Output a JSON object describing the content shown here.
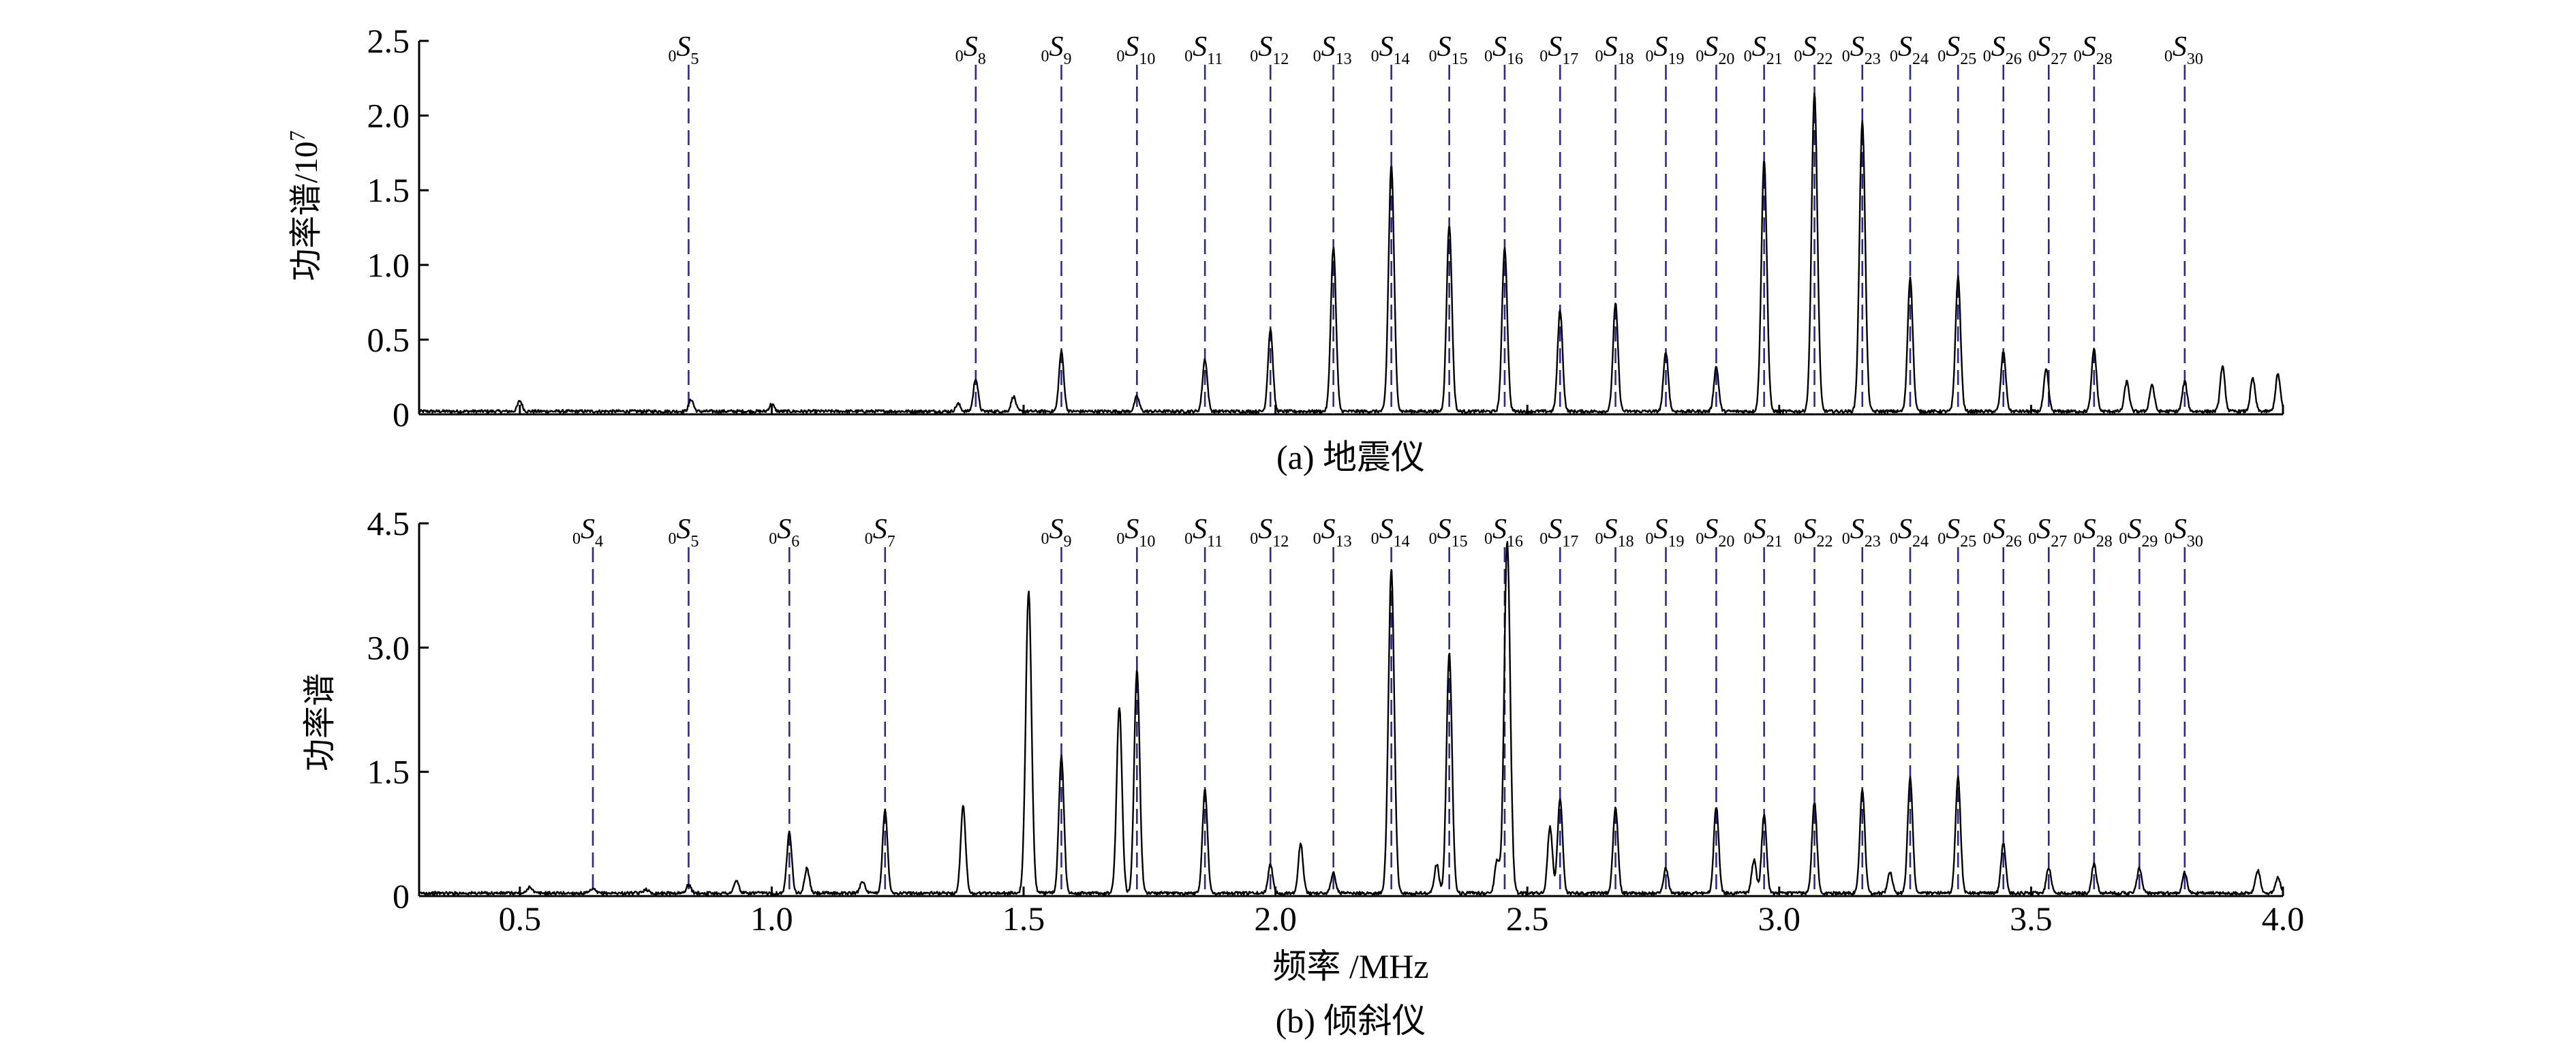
{
  "chart_data": [
    {
      "type": "line",
      "panel_caption": "(a) 地震仪",
      "ylabel": "功率谱/10^7",
      "ylabel_main": "功率谱/10",
      "ylabel_exp": "7",
      "xlim": [
        0.3,
        4.0
      ],
      "ylim": [
        0,
        2.5
      ],
      "yticks": [
        0,
        0.5,
        1.0,
        1.5,
        2.0,
        2.5
      ],
      "ytick_labels": [
        "0",
        "0.5",
        "1.0",
        "1.5",
        "2.0",
        "2.5"
      ],
      "markers": [
        {
          "label": "0",
          "sub": "5",
          "x": 0.835
        },
        {
          "label": "0",
          "sub": "8",
          "x": 1.405
        },
        {
          "label": "0",
          "sub": "9",
          "x": 1.575
        },
        {
          "label": "0",
          "sub": "10",
          "x": 1.725
        },
        {
          "label": "0",
          "sub": "11",
          "x": 1.86
        },
        {
          "label": "0",
          "sub": "12",
          "x": 1.99
        },
        {
          "label": "0",
          "sub": "13",
          "x": 2.115
        },
        {
          "label": "0",
          "sub": "14",
          "x": 2.23
        },
        {
          "label": "0",
          "sub": "15",
          "x": 2.345
        },
        {
          "label": "0",
          "sub": "16",
          "x": 2.455
        },
        {
          "label": "0",
          "sub": "17",
          "x": 2.565
        },
        {
          "label": "0",
          "sub": "18",
          "x": 2.675
        },
        {
          "label": "0",
          "sub": "19",
          "x": 2.775
        },
        {
          "label": "0",
          "sub": "20",
          "x": 2.875
        },
        {
          "label": "0",
          "sub": "21",
          "x": 2.97
        },
        {
          "label": "0",
          "sub": "22",
          "x": 3.07
        },
        {
          "label": "0",
          "sub": "23",
          "x": 3.165
        },
        {
          "label": "0",
          "sub": "24",
          "x": 3.26
        },
        {
          "label": "0",
          "sub": "25",
          "x": 3.355
        },
        {
          "label": "0",
          "sub": "26",
          "x": 3.445
        },
        {
          "label": "0",
          "sub": "27",
          "x": 3.535
        },
        {
          "label": "0",
          "sub": "28",
          "x": 3.625
        },
        {
          "label": "0",
          "sub": "30",
          "x": 3.805
        }
      ],
      "series": [
        {
          "peaks": [
            {
              "x": 0.5,
              "y": 0.07
            },
            {
              "x": 0.84,
              "y": 0.08
            },
            {
              "x": 1.0,
              "y": 0.05
            },
            {
              "x": 1.37,
              "y": 0.05
            },
            {
              "x": 1.405,
              "y": 0.22
            },
            {
              "x": 1.48,
              "y": 0.1
            },
            {
              "x": 1.575,
              "y": 0.4
            },
            {
              "x": 1.725,
              "y": 0.1
            },
            {
              "x": 1.86,
              "y": 0.35
            },
            {
              "x": 1.99,
              "y": 0.55
            },
            {
              "x": 2.115,
              "y": 1.1
            },
            {
              "x": 2.23,
              "y": 1.65
            },
            {
              "x": 2.345,
              "y": 1.25
            },
            {
              "x": 2.455,
              "y": 1.1
            },
            {
              "x": 2.565,
              "y": 0.68
            },
            {
              "x": 2.675,
              "y": 0.72
            },
            {
              "x": 2.775,
              "y": 0.4
            },
            {
              "x": 2.875,
              "y": 0.3
            },
            {
              "x": 2.97,
              "y": 1.68
            },
            {
              "x": 3.07,
              "y": 2.13
            },
            {
              "x": 3.165,
              "y": 1.95
            },
            {
              "x": 3.26,
              "y": 0.9
            },
            {
              "x": 3.355,
              "y": 0.9
            },
            {
              "x": 3.445,
              "y": 0.4
            },
            {
              "x": 3.53,
              "y": 0.28
            },
            {
              "x": 3.625,
              "y": 0.42
            },
            {
              "x": 3.69,
              "y": 0.2
            },
            {
              "x": 3.74,
              "y": 0.18
            },
            {
              "x": 3.805,
              "y": 0.2
            },
            {
              "x": 3.88,
              "y": 0.3
            },
            {
              "x": 3.94,
              "y": 0.22
            },
            {
              "x": 3.99,
              "y": 0.25
            }
          ]
        }
      ]
    },
    {
      "type": "line",
      "panel_caption": "(b) 倾斜仪",
      "ylabel": "功率谱",
      "xlabel": "频率 /MHz",
      "xlim": [
        0.3,
        4.0
      ],
      "ylim": [
        0,
        4.5
      ],
      "xticks": [
        0.5,
        1.0,
        1.5,
        2.0,
        2.5,
        3.0,
        3.5,
        4.0
      ],
      "xtick_labels": [
        "0.5",
        "1.0",
        "1.5",
        "2.0",
        "2.5",
        "3.0",
        "3.5",
        "4.0"
      ],
      "yticks": [
        0,
        1.5,
        3.0,
        4.5
      ],
      "ytick_labels": [
        "0",
        "1.5",
        "3.0",
        "4.5"
      ],
      "markers": [
        {
          "label": "0",
          "sub": "4",
          "x": 0.645
        },
        {
          "label": "0",
          "sub": "5",
          "x": 0.835
        },
        {
          "label": "0",
          "sub": "6",
          "x": 1.035
        },
        {
          "label": "0",
          "sub": "7",
          "x": 1.225
        },
        {
          "label": "0",
          "sub": "9",
          "x": 1.575
        },
        {
          "label": "0",
          "sub": "10",
          "x": 1.725
        },
        {
          "label": "0",
          "sub": "11",
          "x": 1.86
        },
        {
          "label": "0",
          "sub": "12",
          "x": 1.99
        },
        {
          "label": "0",
          "sub": "13",
          "x": 2.115
        },
        {
          "label": "0",
          "sub": "14",
          "x": 2.23
        },
        {
          "label": "0",
          "sub": "15",
          "x": 2.345
        },
        {
          "label": "0",
          "sub": "16",
          "x": 2.455
        },
        {
          "label": "0",
          "sub": "17",
          "x": 2.565
        },
        {
          "label": "0",
          "sub": "18",
          "x": 2.675
        },
        {
          "label": "0",
          "sub": "19",
          "x": 2.775
        },
        {
          "label": "0",
          "sub": "20",
          "x": 2.875
        },
        {
          "label": "0",
          "sub": "21",
          "x": 2.97
        },
        {
          "label": "0",
          "sub": "22",
          "x": 3.07
        },
        {
          "label": "0",
          "sub": "23",
          "x": 3.165
        },
        {
          "label": "0",
          "sub": "24",
          "x": 3.26
        },
        {
          "label": "0",
          "sub": "25",
          "x": 3.355
        },
        {
          "label": "0",
          "sub": "26",
          "x": 3.445
        },
        {
          "label": "0",
          "sub": "27",
          "x": 3.535
        },
        {
          "label": "0",
          "sub": "28",
          "x": 3.625
        },
        {
          "label": "0",
          "sub": "29",
          "x": 3.715
        },
        {
          "label": "0",
          "sub": "30",
          "x": 3.805
        }
      ],
      "series": [
        {
          "peaks": [
            {
              "x": 0.52,
              "y": 0.08
            },
            {
              "x": 0.645,
              "y": 0.05
            },
            {
              "x": 0.75,
              "y": 0.05
            },
            {
              "x": 0.835,
              "y": 0.1
            },
            {
              "x": 0.93,
              "y": 0.15
            },
            {
              "x": 1.035,
              "y": 0.75
            },
            {
              "x": 1.07,
              "y": 0.3
            },
            {
              "x": 1.18,
              "y": 0.15
            },
            {
              "x": 1.225,
              "y": 1.0
            },
            {
              "x": 1.38,
              "y": 1.05
            },
            {
              "x": 1.51,
              "y": 3.65
            },
            {
              "x": 1.575,
              "y": 1.65
            },
            {
              "x": 1.69,
              "y": 2.25
            },
            {
              "x": 1.725,
              "y": 2.7
            },
            {
              "x": 1.86,
              "y": 1.25
            },
            {
              "x": 1.99,
              "y": 0.35
            },
            {
              "x": 2.05,
              "y": 0.6
            },
            {
              "x": 2.115,
              "y": 0.25
            },
            {
              "x": 2.23,
              "y": 3.9
            },
            {
              "x": 2.32,
              "y": 0.35
            },
            {
              "x": 2.345,
              "y": 2.9
            },
            {
              "x": 2.44,
              "y": 0.4
            },
            {
              "x": 2.46,
              "y": 4.25
            },
            {
              "x": 2.545,
              "y": 0.8
            },
            {
              "x": 2.565,
              "y": 1.15
            },
            {
              "x": 2.675,
              "y": 1.05
            },
            {
              "x": 2.775,
              "y": 0.3
            },
            {
              "x": 2.875,
              "y": 1.05
            },
            {
              "x": 2.95,
              "y": 0.4
            },
            {
              "x": 2.97,
              "y": 0.95
            },
            {
              "x": 3.07,
              "y": 1.1
            },
            {
              "x": 3.165,
              "y": 1.25
            },
            {
              "x": 3.22,
              "y": 0.25
            },
            {
              "x": 3.26,
              "y": 1.4
            },
            {
              "x": 3.355,
              "y": 1.4
            },
            {
              "x": 3.445,
              "y": 0.6
            },
            {
              "x": 3.535,
              "y": 0.3
            },
            {
              "x": 3.625,
              "y": 0.35
            },
            {
              "x": 3.715,
              "y": 0.3
            },
            {
              "x": 3.805,
              "y": 0.25
            },
            {
              "x": 3.95,
              "y": 0.28
            },
            {
              "x": 3.99,
              "y": 0.2
            }
          ]
        }
      ]
    }
  ]
}
